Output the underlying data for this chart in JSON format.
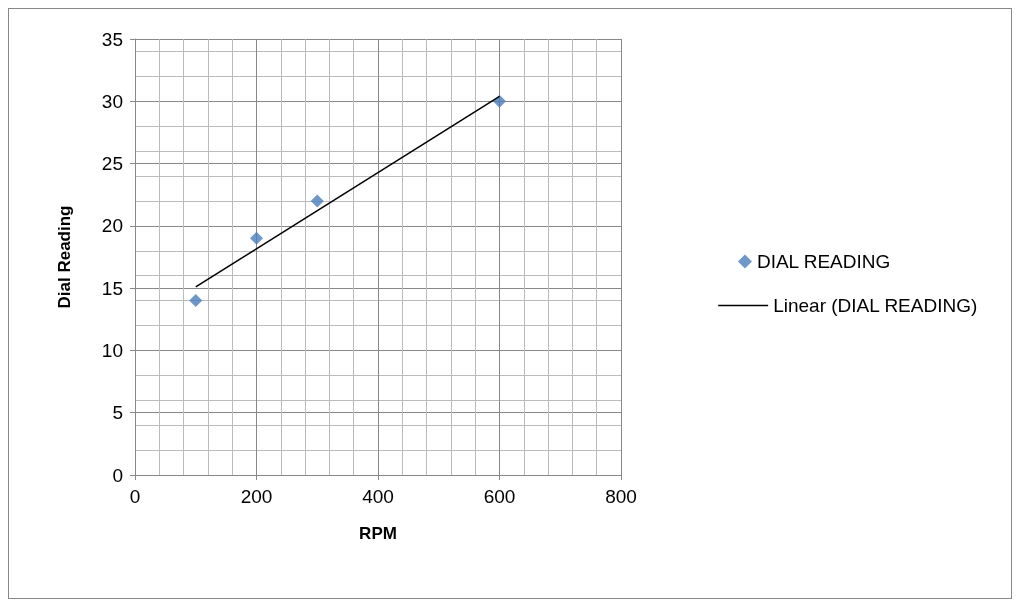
{
  "chart_data": {
    "type": "scatter",
    "xlabel": "RPM",
    "ylabel": "Dial Reading",
    "xlim": [
      0,
      800
    ],
    "xticks": [
      0,
      200,
      400,
      600,
      800
    ],
    "ylim": [
      0,
      35
    ],
    "yticks": [
      0,
      5,
      10,
      15,
      20,
      25,
      30,
      35
    ],
    "grid": true,
    "legend": "right",
    "series": [
      {
        "name": "DIAL READING",
        "marker": "diamond",
        "color": "#4a7ebb",
        "x": [
          100,
          200,
          300,
          600
        ],
        "values": [
          14,
          19,
          22,
          30
        ]
      },
      {
        "name": "Linear (DIAL READING)",
        "type": "line",
        "marker": "none",
        "color": "#000000",
        "x": [
          100,
          600
        ],
        "values": [
          15.1,
          30.4
        ]
      }
    ]
  }
}
